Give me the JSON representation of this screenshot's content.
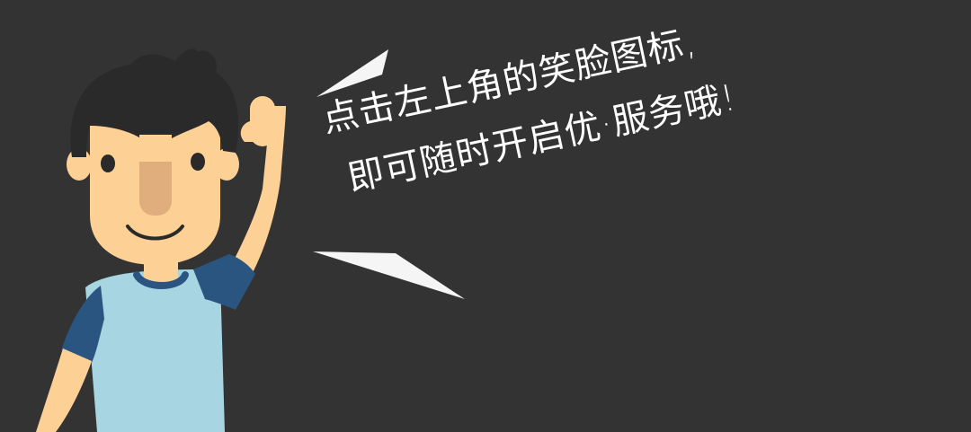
{
  "message": {
    "line1": "点击左上角的笑脸图标,",
    "line2": "即可随时开启优·服务哦!"
  },
  "colors": {
    "background": "#333333",
    "skin": "#FDD195",
    "nose": "#E0AE7C",
    "hair": "#2A2A2A",
    "shirt": "#A8D5E2",
    "sleeve": "#2A5581",
    "speech_marks": "#F5F5F5",
    "text": "#FFFFFF"
  },
  "icons": {
    "character": "waving-cartoon-man",
    "speech_marks": "speech-burst-lines"
  }
}
